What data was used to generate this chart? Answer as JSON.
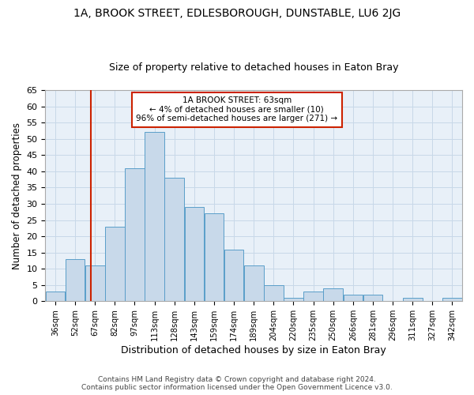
{
  "title": "1A, BROOK STREET, EDLESBOROUGH, DUNSTABLE, LU6 2JG",
  "subtitle": "Size of property relative to detached houses in Eaton Bray",
  "xlabel": "Distribution of detached houses by size in Eaton Bray",
  "ylabel": "Number of detached properties",
  "footer_line1": "Contains HM Land Registry data © Crown copyright and database right 2024.",
  "footer_line2": "Contains public sector information licensed under the Open Government Licence v3.0.",
  "annotation_title": "1A BROOK STREET: 63sqm",
  "annotation_line1": "← 4% of detached houses are smaller (10)",
  "annotation_line2": "96% of semi-detached houses are larger (271) →",
  "bar_color": "#c8d9ea",
  "bar_edge_color": "#5a9ec9",
  "vline_color": "#cc2200",
  "vline_x_bin": 1,
  "background_color": "#ffffff",
  "grid_color": "#c8d8e8",
  "ax_bg_color": "#e8f0f8",
  "categories": [
    "36sqm",
    "52sqm",
    "67sqm",
    "82sqm",
    "97sqm",
    "113sqm",
    "128sqm",
    "143sqm",
    "159sqm",
    "174sqm",
    "189sqm",
    "204sqm",
    "220sqm",
    "235sqm",
    "250sqm",
    "266sqm",
    "281sqm",
    "296sqm",
    "311sqm",
    "327sqm",
    "342sqm"
  ],
  "bin_edges": [
    28.5,
    43.5,
    58.5,
    73.5,
    88.5,
    103.5,
    118.5,
    133.5,
    148.5,
    163.5,
    178.5,
    193.5,
    208.5,
    223.5,
    238.5,
    253.5,
    268.5,
    283.5,
    298.5,
    313.5,
    328.5,
    343.5
  ],
  "values": [
    3,
    13,
    11,
    23,
    41,
    52,
    38,
    29,
    27,
    16,
    11,
    5,
    1,
    3,
    4,
    2,
    2,
    0,
    1,
    0,
    1
  ],
  "ylim": [
    0,
    65
  ],
  "yticks": [
    0,
    5,
    10,
    15,
    20,
    25,
    30,
    35,
    40,
    45,
    50,
    55,
    60,
    65
  ],
  "title_fontsize": 10,
  "subtitle_fontsize": 9
}
